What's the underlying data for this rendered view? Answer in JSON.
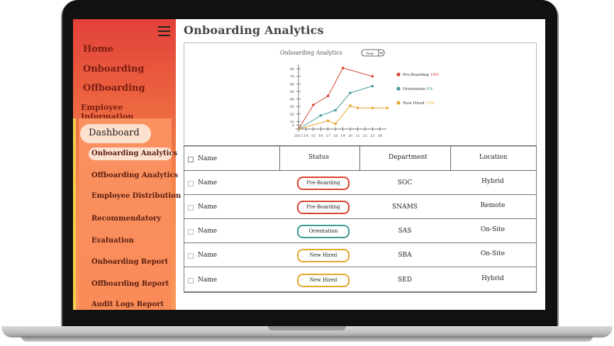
{
  "sidebar": {
    "main_items": [
      {
        "label": "Home"
      },
      {
        "label": "Onboarding"
      },
      {
        "label": "Offboarding"
      },
      {
        "label": "Employee Information"
      }
    ],
    "dashboard_label": "Dashboard",
    "sub_items": [
      {
        "label": "Onboarding Analytics",
        "active": true
      },
      {
        "label": "Offboarding Analytics"
      },
      {
        "label": "Employee Distribution"
      },
      {
        "label": "Recommendatory"
      },
      {
        "label": "Evaluation"
      },
      {
        "label": "Onboarding Report"
      },
      {
        "label": "Offboarding Report"
      },
      {
        "label": "Audit Logs Report"
      }
    ]
  },
  "main": {
    "title": "Onboarding Analytics",
    "chart_title": "Onboarding Analytics",
    "period_select": "Year"
  },
  "chart_data": {
    "type": "line",
    "title": "Onboarding Analytics",
    "x": [
      "2013",
      "14",
      "15",
      "16",
      "17",
      "18",
      "19",
      "20",
      "21",
      "22",
      "23",
      "24"
    ],
    "ylim": [
      0,
      80
    ],
    "yticks": [
      5,
      10,
      20,
      30,
      40,
      50,
      60,
      70,
      80
    ],
    "legend_position": "right",
    "series": [
      {
        "name": "Pre-Boarding",
        "pct": "18%",
        "color": "#d7432f",
        "points": [
          [
            2013,
            0
          ],
          [
            2015,
            32
          ],
          [
            2017,
            44
          ],
          [
            2019,
            81
          ],
          [
            2023,
            70
          ]
        ]
      },
      {
        "name": "Orientation",
        "pct": "8%",
        "color": "#3e9a99",
        "points": [
          [
            2013,
            0
          ],
          [
            2016,
            18
          ],
          [
            2018,
            25
          ],
          [
            2020,
            48
          ],
          [
            2023,
            57
          ]
        ]
      },
      {
        "name": "New Hired",
        "pct": "11%",
        "color": "#e7a52c",
        "points": [
          [
            2013,
            0
          ],
          [
            2017,
            11
          ],
          [
            2018,
            7
          ],
          [
            2020,
            31
          ],
          [
            2021,
            28
          ],
          [
            2023,
            28
          ],
          [
            2025,
            28
          ]
        ]
      }
    ]
  },
  "table": {
    "headers": [
      "Name",
      "Status",
      "Department",
      "Location"
    ],
    "rows": [
      {
        "name": "Name",
        "status": "Pre-Boarding",
        "status_color": "#d7432f",
        "department": "SOC",
        "location": "Hybrid"
      },
      {
        "name": "Name",
        "status": "Pre-Boarding",
        "status_color": "#d7432f",
        "department": "SNAMS",
        "location": "Remote"
      },
      {
        "name": "Name",
        "status": "Orientation",
        "status_color": "#3e9a99",
        "department": "SAS",
        "location": "On-Site"
      },
      {
        "name": "Name",
        "status": "New Hired",
        "status_color": "#e7a52c",
        "department": "SBA",
        "location": "On-Site"
      },
      {
        "name": "Name",
        "status": "New Hired",
        "status_color": "#e7a52c",
        "department": "SED",
        "location": "Hybrid"
      }
    ]
  }
}
